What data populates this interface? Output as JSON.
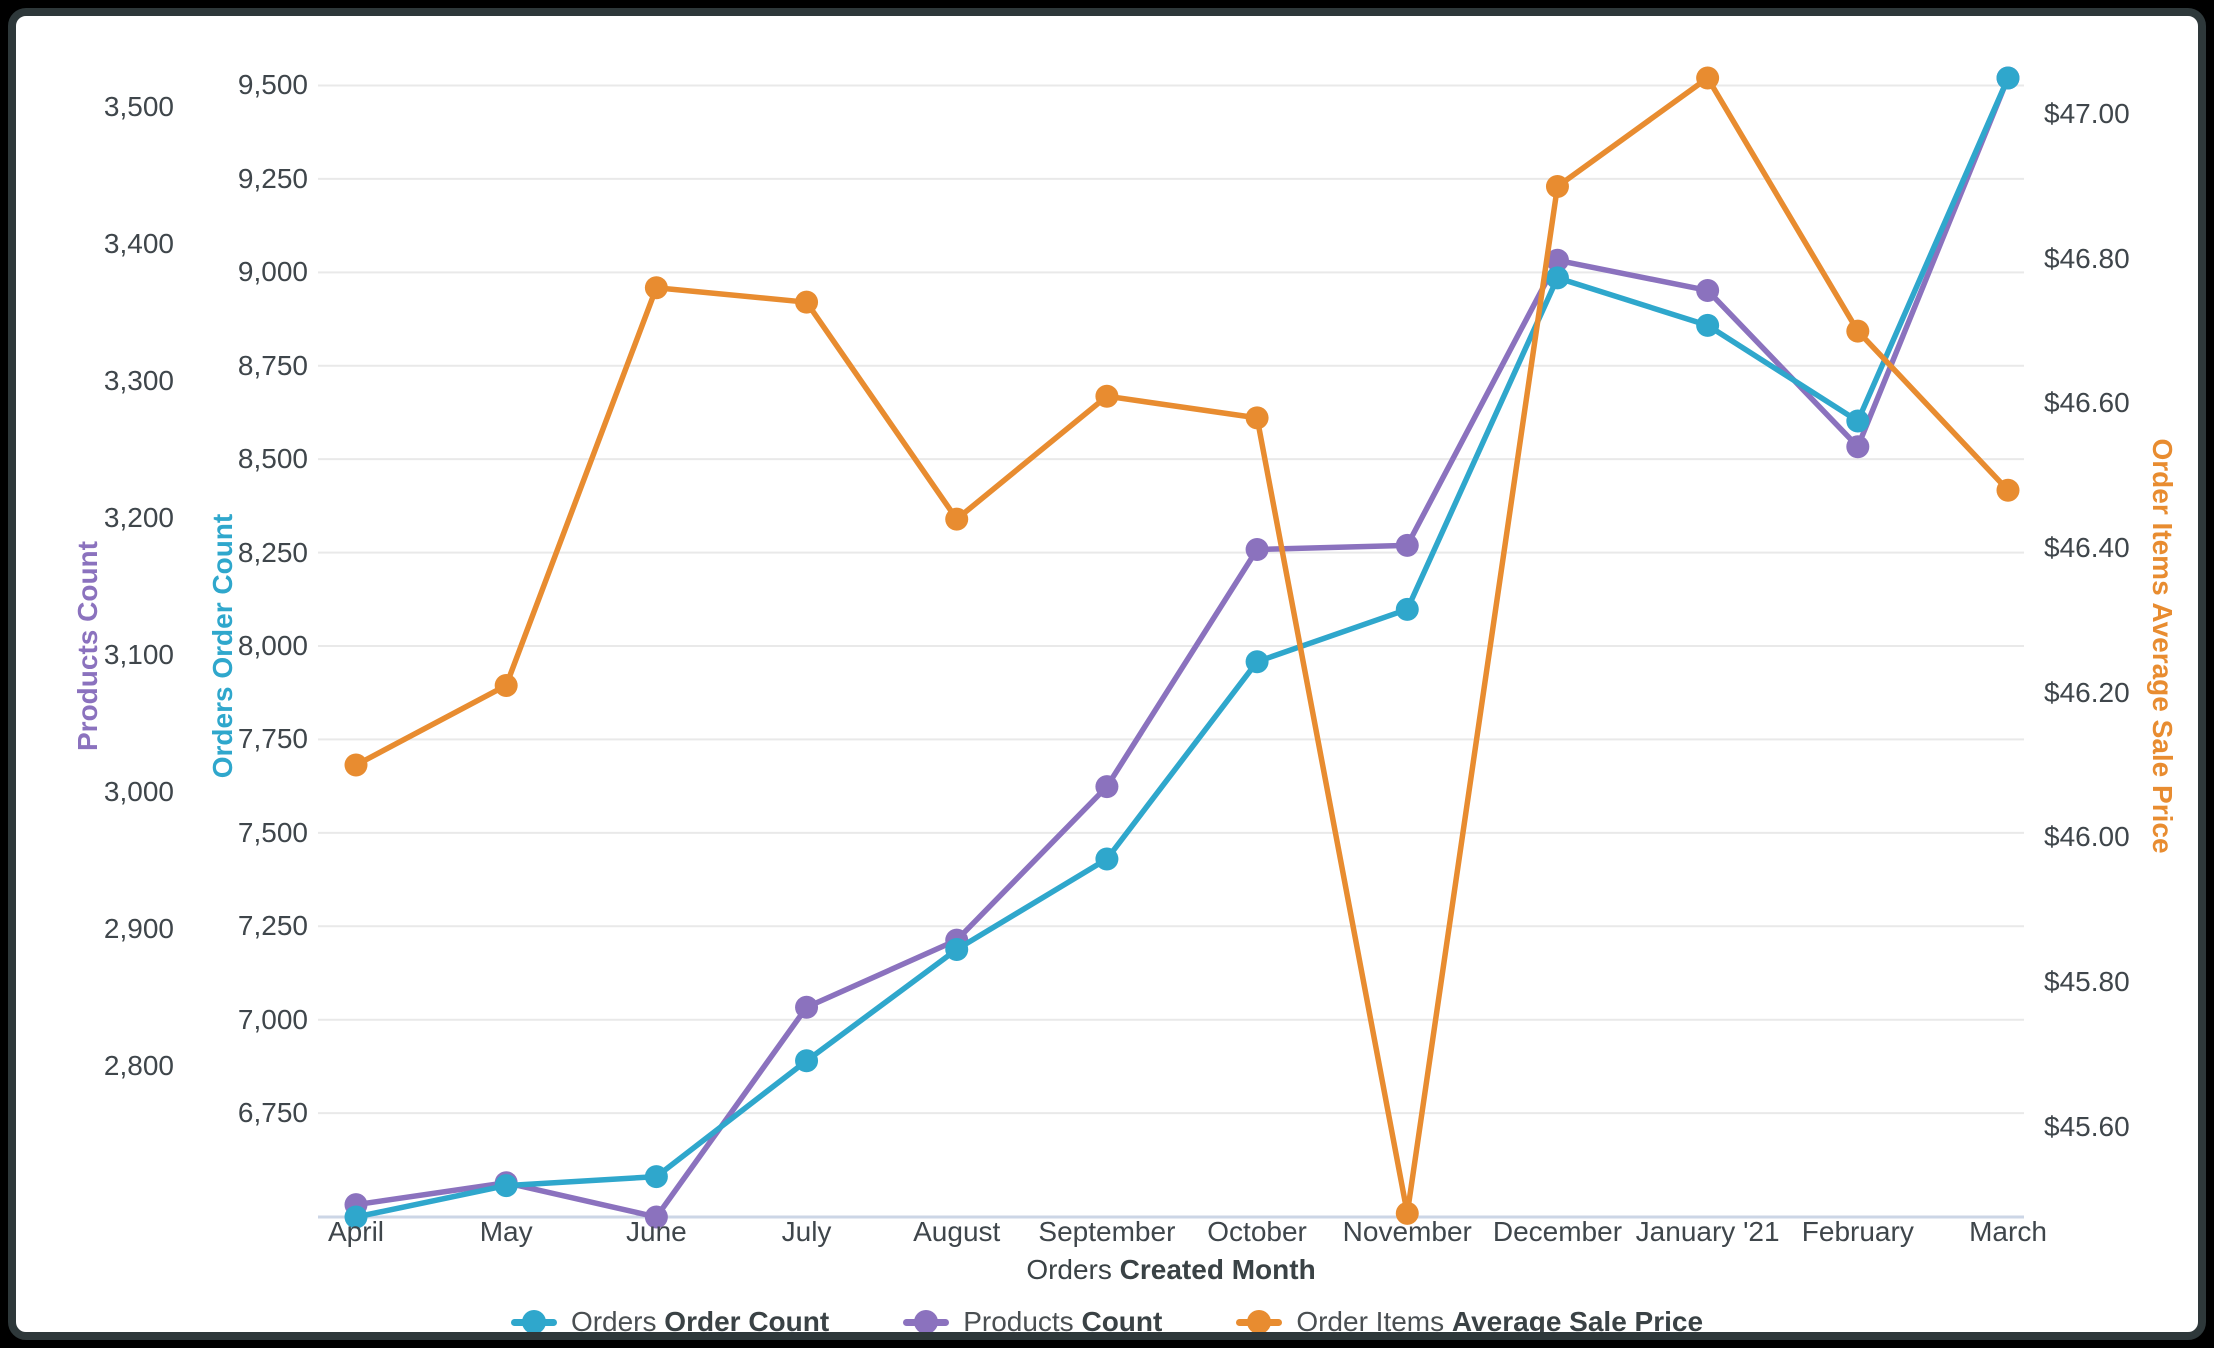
{
  "page": {
    "background": "#000000",
    "card_border": "#2e383a",
    "card_background": "#ffffff"
  },
  "style": {
    "grid_color": "#e9e9e9",
    "axis_line_color": "#ccd6e6",
    "tick_text_color": "#3f464b",
    "axis_title_color": "#3a4245"
  },
  "chart_data": {
    "type": "line",
    "grid": true,
    "legend_position": "bottom",
    "x_categories": [
      "April",
      "May",
      "June",
      "July",
      "August",
      "September",
      "October",
      "November",
      "December",
      "January '21",
      "February",
      "March"
    ],
    "x_axis_title": {
      "prefix": "Orders ",
      "bold": "Created Month"
    },
    "axes": {
      "products": {
        "title": "Products Count",
        "color": "#8b72be",
        "side": "left-outer",
        "range": [
          2690,
          3521
        ],
        "ticks": [
          {
            "label": "3,500",
            "value": 3500
          },
          {
            "label": "3,400",
            "value": 3400
          },
          {
            "label": "3,300",
            "value": 3300
          },
          {
            "label": "3,200",
            "value": 3200
          },
          {
            "label": "3,100",
            "value": 3100
          },
          {
            "label": "3,000",
            "value": 3000
          },
          {
            "label": "2,900",
            "value": 2900
          },
          {
            "label": "2,800",
            "value": 2800
          }
        ]
      },
      "orders": {
        "title": "Orders Order Count",
        "color": "#2fa7cc",
        "side": "left-inner",
        "range": [
          6472,
          9520
        ],
        "ticks": [
          {
            "label": "9,500",
            "value": 9500
          },
          {
            "label": "9,250",
            "value": 9250
          },
          {
            "label": "9,000",
            "value": 9000
          },
          {
            "label": "8,750",
            "value": 8750
          },
          {
            "label": "8,500",
            "value": 8500
          },
          {
            "label": "8,250",
            "value": 8250
          },
          {
            "label": "8,000",
            "value": 8000
          },
          {
            "label": "7,750",
            "value": 7750
          },
          {
            "label": "7,500",
            "value": 7500
          },
          {
            "label": "7,250",
            "value": 7250
          },
          {
            "label": "7,000",
            "value": 7000
          },
          {
            "label": "6,750",
            "value": 6750
          }
        ]
      },
      "price": {
        "title": "Order Items Average Sale Price",
        "color": "#e88c30",
        "side": "right",
        "range": [
          45.475,
          47.05
        ],
        "ticks": [
          {
            "label": "$47.00",
            "value": 47.0
          },
          {
            "label": "$46.80",
            "value": 46.8
          },
          {
            "label": "$46.60",
            "value": 46.6
          },
          {
            "label": "$46.40",
            "value": 46.4
          },
          {
            "label": "$46.20",
            "value": 46.2
          },
          {
            "label": "$46.00",
            "value": 46.0
          },
          {
            "label": "$45.80",
            "value": 45.8
          },
          {
            "label": "$45.60",
            "value": 45.6
          }
        ]
      }
    },
    "series": [
      {
        "id": "orders",
        "legend_prefix": "Orders ",
        "legend_bold": "Order Count",
        "axis": "orders",
        "color": "#2fa7cc",
        "values": [
          6472,
          6556,
          6580,
          6890,
          7188,
          7430,
          7958,
          8098,
          8985,
          8858,
          8602,
          9520
        ]
      },
      {
        "id": "products",
        "legend_prefix": "Products ",
        "legend_bold": "Count",
        "axis": "products",
        "color": "#8b72be",
        "values": [
          2699,
          2715,
          2690,
          2843,
          2892,
          3004,
          3177,
          3180,
          3388,
          3366,
          3252,
          3521
        ]
      },
      {
        "id": "price",
        "legend_prefix": "Order Items ",
        "legend_bold": "Average Sale Price",
        "axis": "price",
        "color": "#e88c30",
        "values": [
          46.1,
          46.21,
          46.76,
          46.74,
          46.44,
          46.61,
          46.58,
          45.48,
          46.9,
          47.05,
          46.7,
          46.48
        ]
      }
    ]
  }
}
